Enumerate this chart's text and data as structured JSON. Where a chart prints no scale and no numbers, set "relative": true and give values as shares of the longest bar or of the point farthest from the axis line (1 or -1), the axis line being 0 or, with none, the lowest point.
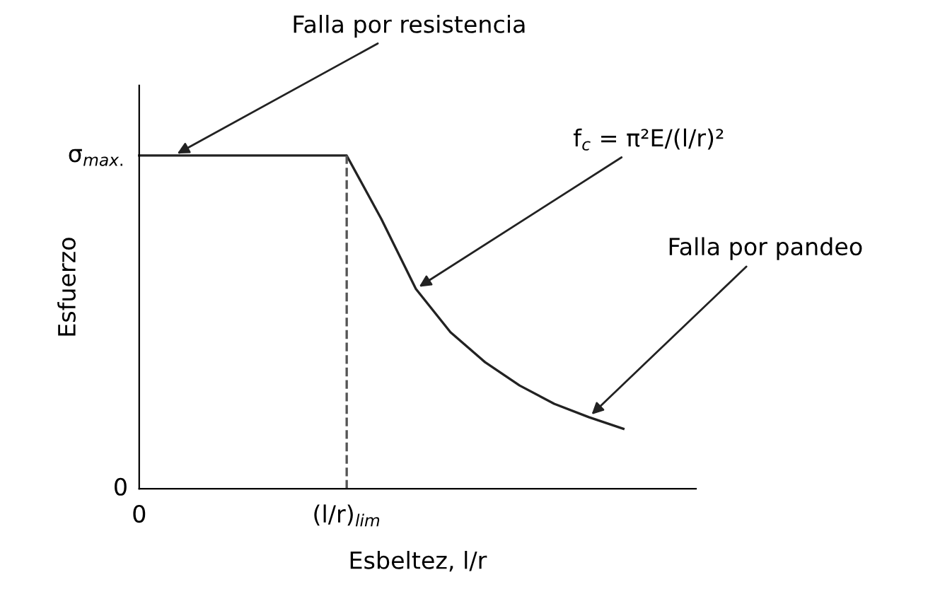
{
  "chart_data": {
    "type": "line",
    "relative": true,
    "xlabel": "Esbeltez, l/r",
    "ylabel": "Esfuerzo",
    "categories": [
      "0",
      null,
      null,
      null,
      null,
      null,
      "(l/r)$_{lim}$",
      null,
      null,
      null,
      null,
      null,
      null,
      null,
      null
    ],
    "series": [
      {
        "color": "#222222",
        "values": [
          1.0,
          1.0,
          1.0,
          1.0,
          1.0,
          1.0,
          1.0,
          0.81,
          0.6,
          0.47,
          0.38,
          0.31,
          0.255,
          0.215,
          0.18
        ],
        "line_style": "solid"
      }
    ],
    "ref_lines": [
      {
        "axis": "x",
        "value": "(l/r)$_{lim}$",
        "color": "#555555",
        "line_style": "dashed"
      }
    ],
    "annotations": [
      "Falla por resistencia",
      "f$_{c}$ = π²E/(l/r)²",
      "Falla por pandeo",
      "σ$_{max.}$",
      "0"
    ],
    "grid": false,
    "legend": false
  }
}
